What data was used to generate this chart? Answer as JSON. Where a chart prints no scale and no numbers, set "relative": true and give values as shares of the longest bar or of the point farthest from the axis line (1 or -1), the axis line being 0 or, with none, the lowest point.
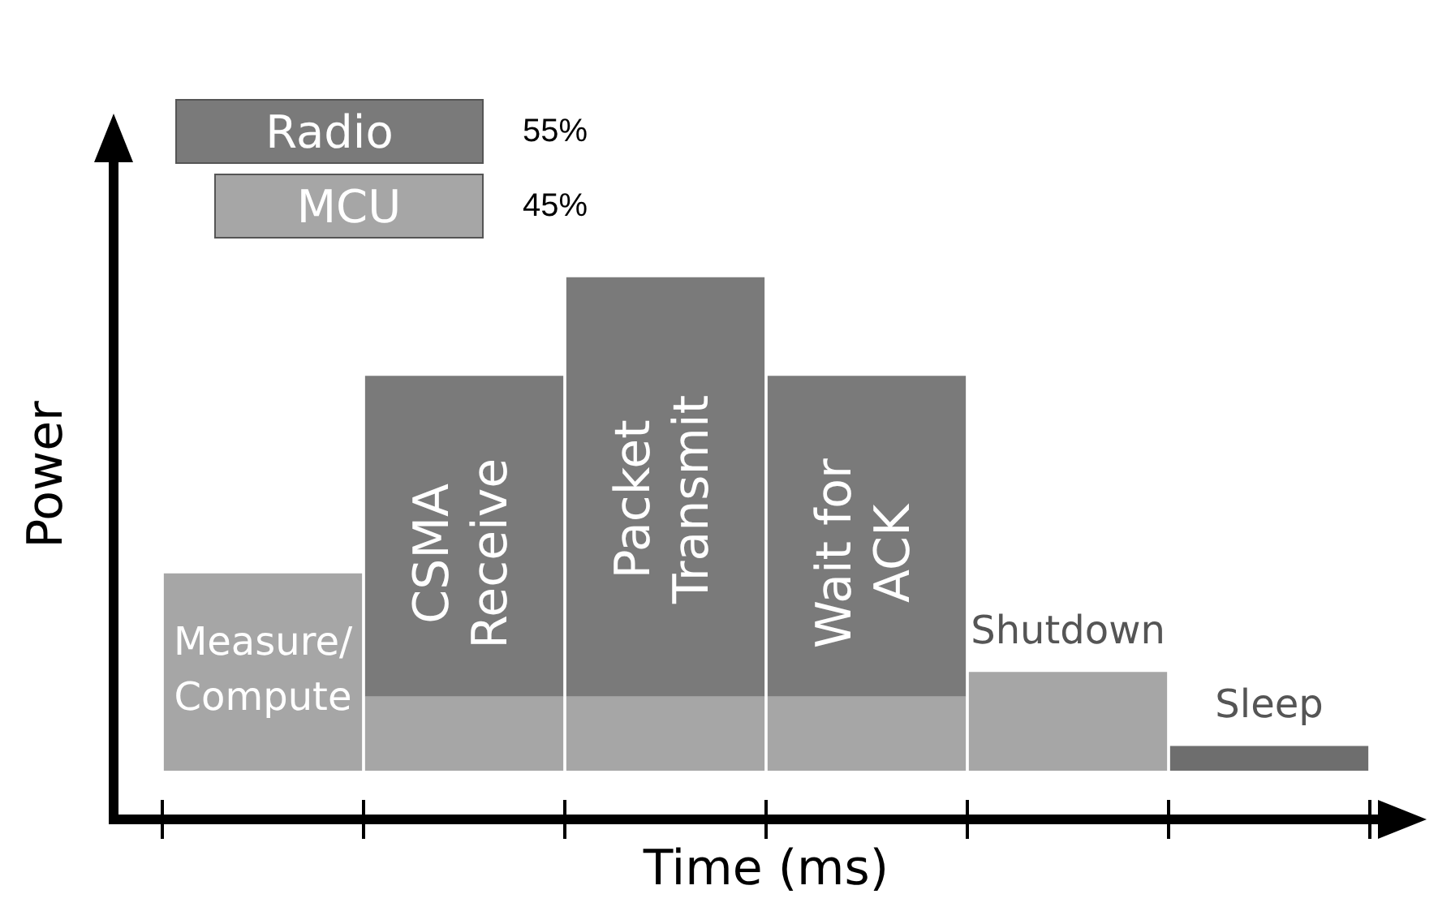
{
  "chart_data": {
    "type": "bar",
    "stacked": true,
    "relative": true,
    "xlabel": "Time (ms)",
    "ylabel": "Power",
    "categories": [
      "Measure/ Compute",
      "CSMA Receive",
      "Packet Transmit",
      "Wait for ACK",
      "Shutdown",
      "Sleep"
    ],
    "series": [
      {
        "name": "MCU",
        "colors": [
          "#a6a6a6",
          "#a6a6a6",
          "#a6a6a6",
          "#a6a6a6",
          "#a6a6a6",
          "#6e6e6e"
        ],
        "color": "#a6a6a6",
        "values": [
          0.4,
          0.15,
          0.15,
          0.15,
          0.2,
          0.05
        ]
      },
      {
        "name": "Radio",
        "color": "#7a7a7a",
        "values": [
          0,
          0.65,
          0.85,
          0.65,
          0,
          0
        ]
      }
    ],
    "annotations": [
      "55%",
      "45%"
    ],
    "legend": "top left",
    "tick_labels": false,
    "grid": false
  }
}
